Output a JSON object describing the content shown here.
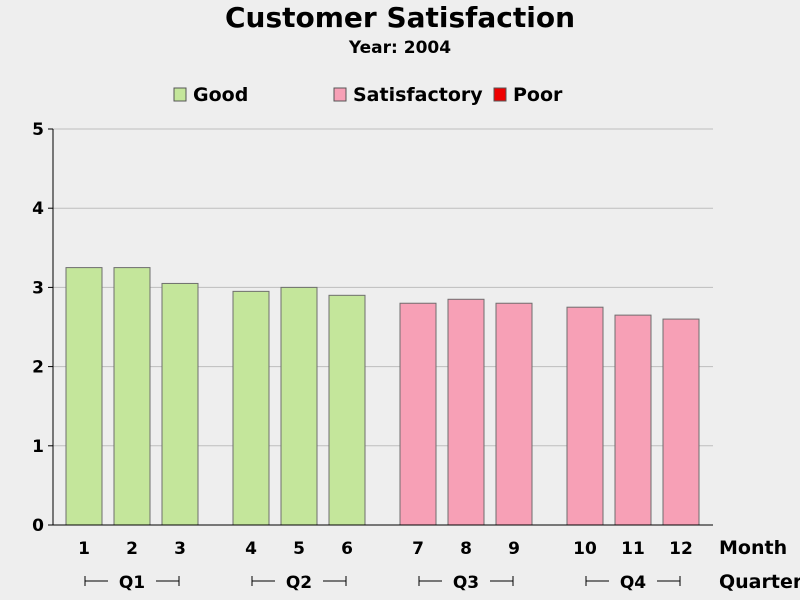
{
  "chart_data": {
    "type": "bar",
    "title": "Customer Satisfaction",
    "subtitle": "Year: 2004",
    "xlabel": "Month",
    "group_label": "Quarter",
    "ylabel": "",
    "ylim": [
      0,
      5
    ],
    "yticks": [
      0,
      1,
      2,
      3,
      4,
      5
    ],
    "grid": true,
    "legend_position": "top",
    "legend": [
      {
        "name": "Good",
        "color": "#c4e69b"
      },
      {
        "name": "Satisfactory",
        "color": "#f7a0b6"
      },
      {
        "name": "Poor",
        "color": "#ee0000"
      }
    ],
    "groups": [
      {
        "label": "Q1",
        "months": [
          "1",
          "2",
          "3"
        ]
      },
      {
        "label": "Q2",
        "months": [
          "4",
          "5",
          "6"
        ]
      },
      {
        "label": "Q3",
        "months": [
          "7",
          "8",
          "9"
        ]
      },
      {
        "label": "Q4",
        "months": [
          "10",
          "11",
          "12"
        ]
      }
    ],
    "categories": [
      "1",
      "2",
      "3",
      "4",
      "5",
      "6",
      "7",
      "8",
      "9",
      "10",
      "11",
      "12"
    ],
    "values": [
      3.25,
      3.25,
      3.05,
      2.95,
      3.0,
      2.9,
      2.8,
      2.85,
      2.8,
      2.75,
      2.65,
      2.6
    ],
    "bar_categories": [
      "Good",
      "Good",
      "Good",
      "Good",
      "Good",
      "Good",
      "Satisfactory",
      "Satisfactory",
      "Satisfactory",
      "Satisfactory",
      "Satisfactory",
      "Satisfactory"
    ]
  }
}
